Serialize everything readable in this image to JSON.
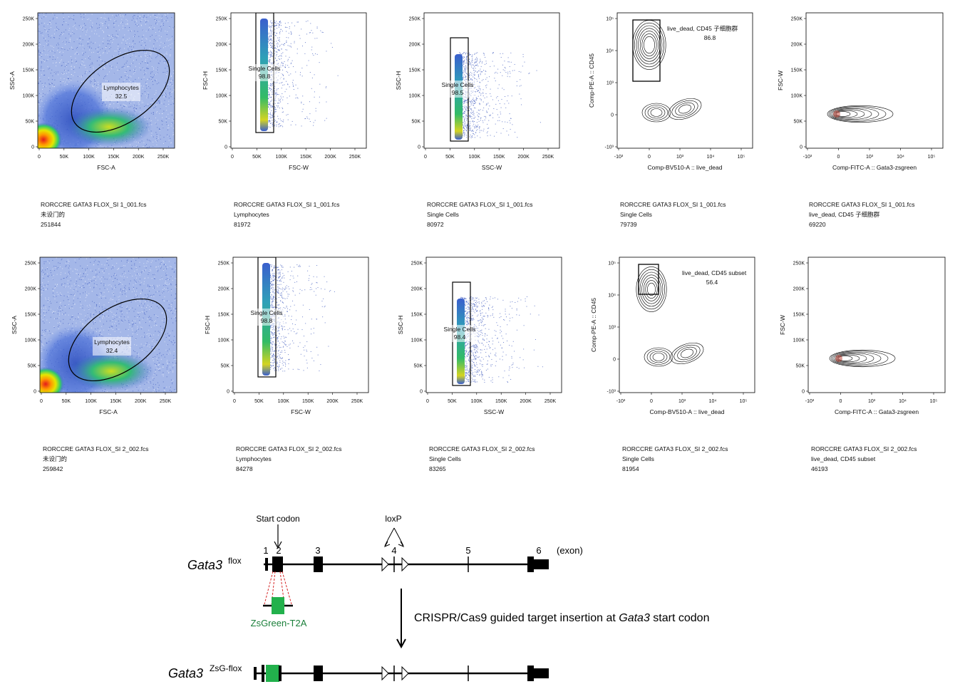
{
  "flow_panels": [
    {
      "id": "r1p1",
      "xaxis": "FSC-A",
      "yaxis": "SSC-A",
      "xticks": [
        "0",
        "50K",
        "100K",
        "150K",
        "200K",
        "250K"
      ],
      "yticks": [
        "0",
        "50K",
        "100K",
        "150K",
        "200K",
        "250K"
      ],
      "gate": {
        "label": "Lymphocytes",
        "value": "32.5"
      },
      "caption": {
        "file": "RORCCRE GATA3 FLOX_SI 1_001.fcs",
        "pop": "未设门的",
        "count": "251844"
      }
    },
    {
      "id": "r1p2",
      "xaxis": "FSC-W",
      "yaxis": "FSC-H",
      "xticks": [
        "0",
        "50K",
        "100K",
        "150K",
        "200K",
        "250K"
      ],
      "yticks": [
        "0",
        "50K",
        "100K",
        "150K",
        "200K",
        "250K"
      ],
      "gate": {
        "label": "Single Cells",
        "value": "98.8"
      },
      "caption": {
        "file": "RORCCRE GATA3 FLOX_SI 1_001.fcs",
        "pop": "Lymphocytes",
        "count": "81972"
      }
    },
    {
      "id": "r1p3",
      "xaxis": "SSC-W",
      "yaxis": "SSC-H",
      "xticks": [
        "0",
        "50K",
        "100K",
        "150K",
        "200K",
        "250K"
      ],
      "yticks": [
        "0",
        "50K",
        "100K",
        "150K",
        "200K",
        "250K"
      ],
      "gate": {
        "label": "Single Cells",
        "value": "98.5"
      },
      "caption": {
        "file": "RORCCRE GATA3 FLOX_SI 1_001.fcs",
        "pop": "Single Cells",
        "count": "80972"
      }
    },
    {
      "id": "r1p4",
      "xaxis": "Comp-BV510-A :: live_dead",
      "yaxis": "Comp-PE-A :: CD45",
      "xticks": [
        "-10³",
        "0",
        "10³",
        "10⁴",
        "10⁵"
      ],
      "yticks": [
        "-10³",
        "0",
        "10³",
        "10⁴",
        "10⁵"
      ],
      "gate": {
        "label": "live_dead, CD45 子细胞群",
        "value": "86.8"
      },
      "caption": {
        "file": "RORCCRE GATA3 FLOX_SI 1_001.fcs",
        "pop": "Single Cells",
        "count": "79739"
      }
    },
    {
      "id": "r1p5",
      "xaxis": "Comp-FITC-A :: Gata3-zsgreen",
      "yaxis": "FSC-W",
      "xticks": [
        "-10³",
        "0",
        "10³",
        "10⁴",
        "10⁵"
      ],
      "yticks": [
        "0",
        "50K",
        "100K",
        "150K",
        "200K",
        "250K"
      ],
      "gate": null,
      "caption": {
        "file": "RORCCRE GATA3 FLOX_SI 1_001.fcs",
        "pop": "live_dead, CD45 子细胞群",
        "count": "69220"
      }
    },
    {
      "id": "r2p1",
      "xaxis": "FSC-A",
      "yaxis": "SSC-A",
      "xticks": [
        "0",
        "50K",
        "100K",
        "150K",
        "200K",
        "250K"
      ],
      "yticks": [
        "0",
        "50K",
        "100K",
        "150K",
        "200K",
        "250K"
      ],
      "gate": {
        "label": "Lymphocytes",
        "value": "32.4"
      },
      "caption": {
        "file": "RORCCRE GATA3 FLOX_SI 2_002.fcs",
        "pop": "未设门的",
        "count": "259842"
      }
    },
    {
      "id": "r2p2",
      "xaxis": "FSC-W",
      "yaxis": "FSC-H",
      "xticks": [
        "0",
        "50K",
        "100K",
        "150K",
        "200K",
        "250K"
      ],
      "yticks": [
        "0",
        "50K",
        "100K",
        "150K",
        "200K",
        "250K"
      ],
      "gate": {
        "label": "Single Cells",
        "value": "98.8"
      },
      "caption": {
        "file": "RORCCRE GATA3 FLOX_SI 2_002.fcs",
        "pop": "Lymphocytes",
        "count": "84278"
      }
    },
    {
      "id": "r2p3",
      "xaxis": "SSC-W",
      "yaxis": "SSC-H",
      "xticks": [
        "0",
        "50K",
        "100K",
        "150K",
        "200K",
        "250K"
      ],
      "yticks": [
        "0",
        "50K",
        "100K",
        "150K",
        "200K",
        "250K"
      ],
      "gate": {
        "label": "Single Cells",
        "value": "98.4"
      },
      "caption": {
        "file": "RORCCRE GATA3 FLOX_SI 2_002.fcs",
        "pop": "Single Cells",
        "count": "83265"
      }
    },
    {
      "id": "r2p4",
      "xaxis": "Comp-BV510-A :: live_dead",
      "yaxis": "Comp-PE-A :: CD45",
      "xticks": [
        "-10³",
        "0",
        "10³",
        "10⁴",
        "10⁵"
      ],
      "yticks": [
        "-10³",
        "0",
        "10³",
        "10⁴",
        "10⁵"
      ],
      "gate": {
        "label": "live_dead, CD45 subset",
        "value": "56.4"
      },
      "caption": {
        "file": "RORCCRE GATA3 FLOX_SI 2_002.fcs",
        "pop": "Single Cells",
        "count": "81954"
      }
    },
    {
      "id": "r2p5",
      "xaxis": "Comp-FITC-A :: Gata3-zsgreen",
      "yaxis": "FSC-W",
      "xticks": [
        "-10³",
        "0",
        "10³",
        "10⁴",
        "10⁵"
      ],
      "yticks": [
        "0",
        "50K",
        "100K",
        "150K",
        "200K",
        "250K"
      ],
      "gate": null,
      "caption": {
        "file": "RORCCRE GATA3 FLOX_SI 2_002.fcs",
        "pop": "live_dead, CD45 subset",
        "count": "46193"
      }
    }
  ],
  "diagram": {
    "start_codon": "Start codon",
    "loxp": "loxP",
    "exons": [
      "1",
      "2",
      "3",
      "4",
      "5",
      "6"
    ],
    "exon_word": "(exon)",
    "allele1_name": "Gata3",
    "allele1_sup": "flox",
    "insert_label": "ZsGreen-T2A",
    "arrow_text_pre": "CRISPR/Cas9 guided target insertion at ",
    "arrow_text_gene": "Gata3",
    "arrow_text_post": " start codon",
    "allele2_name": "Gata3",
    "allele2_sup": "ZsG-flox",
    "colors": {
      "insert": "#22b14c",
      "insert_text": "#1a7f3a",
      "cut": "#d62728"
    }
  }
}
